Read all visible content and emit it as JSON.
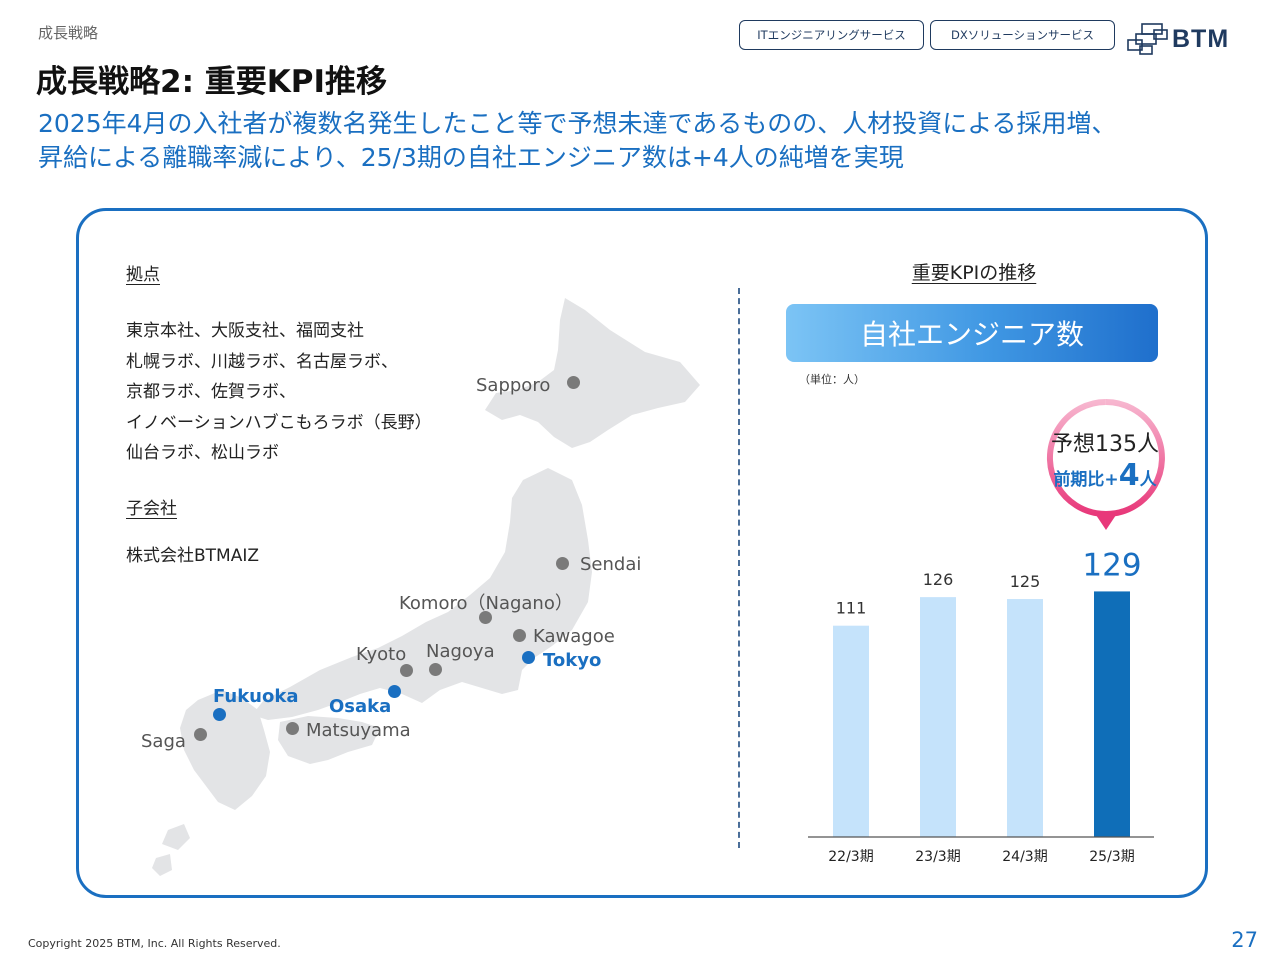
{
  "header": {
    "section": "成長戦略",
    "title": "成長戦略2: 重要KPI推移",
    "subtitle_line1": "2025年4月の入社者が複数名発生したこと等で予想未達であるものの、人材投資による採用増、",
    "subtitle_line2": "昇給による離職率減により、25/3期の自社エンジニア数は+4人の純増を実現",
    "tags": [
      "ITエンジニアリングサービス",
      "DXソリューションサービス"
    ],
    "logo_text": "BTM"
  },
  "bases": {
    "heading": "拠点",
    "lines": [
      "東京本社、大阪支社、福岡支社",
      "札幌ラボ、川越ラボ、名古屋ラボ、",
      "京都ラボ、佐賀ラボ、",
      "イノベーションハブこもろラボ（長野）",
      "仙台ラボ、松山ラボ"
    ]
  },
  "subsidiary": {
    "heading": "子会社",
    "name": "株式会社BTMAIZ"
  },
  "map": {
    "cities": [
      {
        "name": "Sapporo",
        "hq": false
      },
      {
        "name": "Sendai",
        "hq": false
      },
      {
        "name": "Komoro（Nagano）",
        "hq": false
      },
      {
        "name": "Kawagoe",
        "hq": false
      },
      {
        "name": "Tokyo",
        "hq": true
      },
      {
        "name": "Nagoya",
        "hq": false
      },
      {
        "name": "Kyoto",
        "hq": false
      },
      {
        "name": "Osaka",
        "hq": true
      },
      {
        "name": "Fukuoka",
        "hq": true
      },
      {
        "name": "Saga",
        "hq": false
      },
      {
        "name": "Matsuyama",
        "hq": false
      }
    ],
    "colors": {
      "land": "#e3e4e6",
      "dot": "#7a7a7a",
      "hq": "#1a6fc1"
    }
  },
  "kpi": {
    "heading": "重要KPIの推移",
    "metric_title": "自社エンジニア数",
    "unit_note": "（単位：人）",
    "forecast_label": "予想135人",
    "diff_prefix": "前期比+",
    "diff_value": "4",
    "diff_suffix": "人"
  },
  "chart_data": {
    "type": "bar",
    "title": "自社エンジニア数",
    "categories": [
      "22/3期",
      "23/3期",
      "24/3期",
      "25/3期"
    ],
    "values": [
      111,
      126,
      125,
      129
    ],
    "ylim": [
      0,
      135
    ],
    "highlight_index": 3,
    "colors": {
      "normal": "#c5e3fb",
      "highlight": "#0f6eb8",
      "highlight_label": "#1a6fc1",
      "axis": "#555555"
    },
    "grid": false
  },
  "footer": {
    "copyright": "Copyright 2025 BTM, Inc. All Rights Reserved.",
    "page": "27"
  }
}
